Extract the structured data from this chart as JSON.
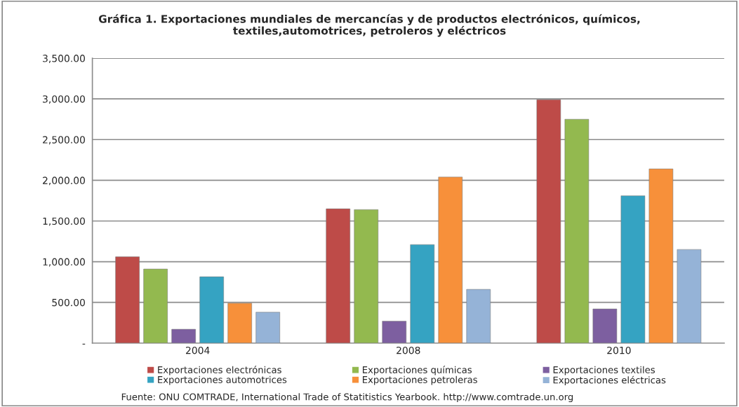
{
  "chart_data": {
    "type": "bar",
    "title": "Gráfica 1. Exportaciones mundiales de mercancías y de productos electrónicos, químicos,\ntextiles,automotrices, petroleros y eléctricos",
    "categories": [
      "2004",
      "2008",
      "2010"
    ],
    "series": [
      {
        "name": "Exportaciones electrónicas",
        "color": "#be4b48",
        "values": [
          1060,
          1650,
          2990
        ]
      },
      {
        "name": "Exportaciones químicas",
        "color": "#93b94f",
        "values": [
          910,
          1640,
          2750
        ]
      },
      {
        "name": "Exportaciones textiles",
        "color": "#7d5fa0",
        "values": [
          170,
          270,
          420
        ]
      },
      {
        "name": "Exportaciones automotrices",
        "color": "#35a3c2",
        "values": [
          815,
          1210,
          1810
        ]
      },
      {
        "name": "Exportaciones petroleras",
        "color": "#f7903a",
        "values": [
          490,
          2040,
          2140
        ]
      },
      {
        "name": "Exportaciones eléctricas",
        "color": "#95b3d7",
        "values": [
          380,
          660,
          1150
        ]
      }
    ],
    "ylim": [
      0,
      3500
    ],
    "yticks": [
      {
        "value": 0,
        "label": "-"
      },
      {
        "value": 500,
        "label": "500.00"
      },
      {
        "value": 1000,
        "label": "1,000.00"
      },
      {
        "value": 1500,
        "label": "1,500.00"
      },
      {
        "value": 2000,
        "label": "2,000.00"
      },
      {
        "value": 2500,
        "label": "2,500.00"
      },
      {
        "value": 3000,
        "label": "3,000.00"
      },
      {
        "value": 3500,
        "label": "3,500.00"
      }
    ],
    "grid": "y",
    "legend": "bottom",
    "annotations": [
      "Fuente: ONU COMTRADE, International Trade of Statitistics Yearbook. http://www.comtrade.un.org"
    ]
  }
}
